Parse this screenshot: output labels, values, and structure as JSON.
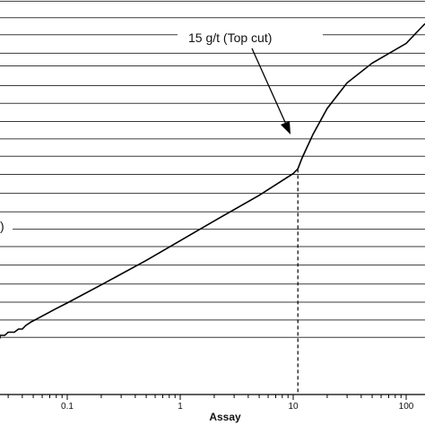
{
  "chart_data": {
    "type": "line",
    "xlabel": "Assay",
    "x_scale": "log",
    "xlim": [
      0.01,
      200
    ],
    "x_ticks": [
      {
        "value": 0.1,
        "label": "0.1"
      },
      {
        "value": 1,
        "label": "1"
      },
      {
        "value": 10,
        "label": "10"
      },
      {
        "value": 100,
        "label": "100"
      }
    ],
    "ylabel": "",
    "grid": "horizontal",
    "series": [
      {
        "values": [
          [
            0.01,
            0.142
          ],
          [
            0.023,
            0.142
          ],
          [
            0.025,
            0.15
          ],
          [
            0.028,
            0.15
          ],
          [
            0.03,
            0.158
          ],
          [
            0.034,
            0.158
          ],
          [
            0.037,
            0.166
          ],
          [
            0.04,
            0.166
          ],
          [
            0.043,
            0.175
          ],
          [
            0.048,
            0.184
          ],
          [
            0.055,
            0.193
          ],
          [
            0.065,
            0.204
          ],
          [
            0.08,
            0.218
          ],
          [
            0.1,
            0.232
          ],
          [
            0.2,
            0.278
          ],
          [
            0.5,
            0.34
          ],
          [
            1,
            0.39
          ],
          [
            2,
            0.44
          ],
          [
            5,
            0.505
          ],
          [
            10,
            0.56
          ],
          [
            11,
            0.572
          ],
          [
            12,
            0.6
          ],
          [
            15,
            0.66
          ],
          [
            20,
            0.725
          ],
          [
            30,
            0.79
          ],
          [
            50,
            0.84
          ],
          [
            100,
            0.89
          ],
          [
            200,
            0.94
          ]
        ]
      }
    ],
    "topcut": {
      "value": 11,
      "label": "15 g/t (Top cut)"
    },
    "left_label_fragment": ")"
  }
}
